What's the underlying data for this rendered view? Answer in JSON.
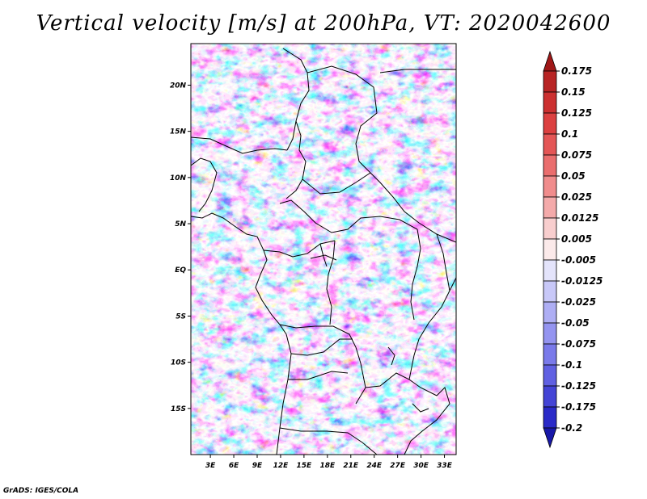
{
  "title": "Vertical velocity [m/s] at 200hPa, VT: 2020042600",
  "credit": "GrADS: IGES/COLA",
  "chart_data": {
    "type": "heatmap",
    "title": "Vertical velocity [m/s] at 200hPa, VT: 2020042600",
    "variable": "Vertical velocity",
    "units": "m/s",
    "level": "200hPa",
    "valid_time": "2020042600",
    "x_ticks": [
      "3E",
      "6E",
      "9E",
      "12E",
      "15E",
      "18E",
      "21E",
      "24E",
      "27E",
      "30E",
      "33E"
    ],
    "x_tick_values": [
      3,
      6,
      9,
      12,
      15,
      18,
      21,
      24,
      27,
      30,
      33
    ],
    "y_ticks": [
      "20N",
      "15N",
      "10N",
      "5N",
      "EQ",
      "5S",
      "10S",
      "15S"
    ],
    "y_tick_values": [
      20,
      15,
      10,
      5,
      0,
      -5,
      -10,
      -15
    ],
    "xlim": [
      0.5,
      34.5
    ],
    "ylim": [
      -20,
      24.5
    ],
    "colorbar_labels": [
      "0.175",
      "0.15",
      "0.125",
      "0.1",
      "0.075",
      "0.05",
      "0.025",
      "0.0125",
      "0.005",
      "-0.005",
      "-0.0125",
      "-0.025",
      "-0.05",
      "-0.075",
      "-0.1",
      "-0.125",
      "-0.175",
      "-0.2"
    ],
    "colorbar_colors": [
      "#a01818",
      "#b82424",
      "#cc3030",
      "#dc4040",
      "#e45656",
      "#ea6e6e",
      "#f08c8c",
      "#f4aaaa",
      "#f8cece",
      "#fbeaea",
      "#e4e4fb",
      "#c8c8f8",
      "#aeaef4",
      "#9494f0",
      "#7a7aea",
      "#6060e2",
      "#4444d6",
      "#2a2ac8",
      "#1818a8"
    ]
  }
}
